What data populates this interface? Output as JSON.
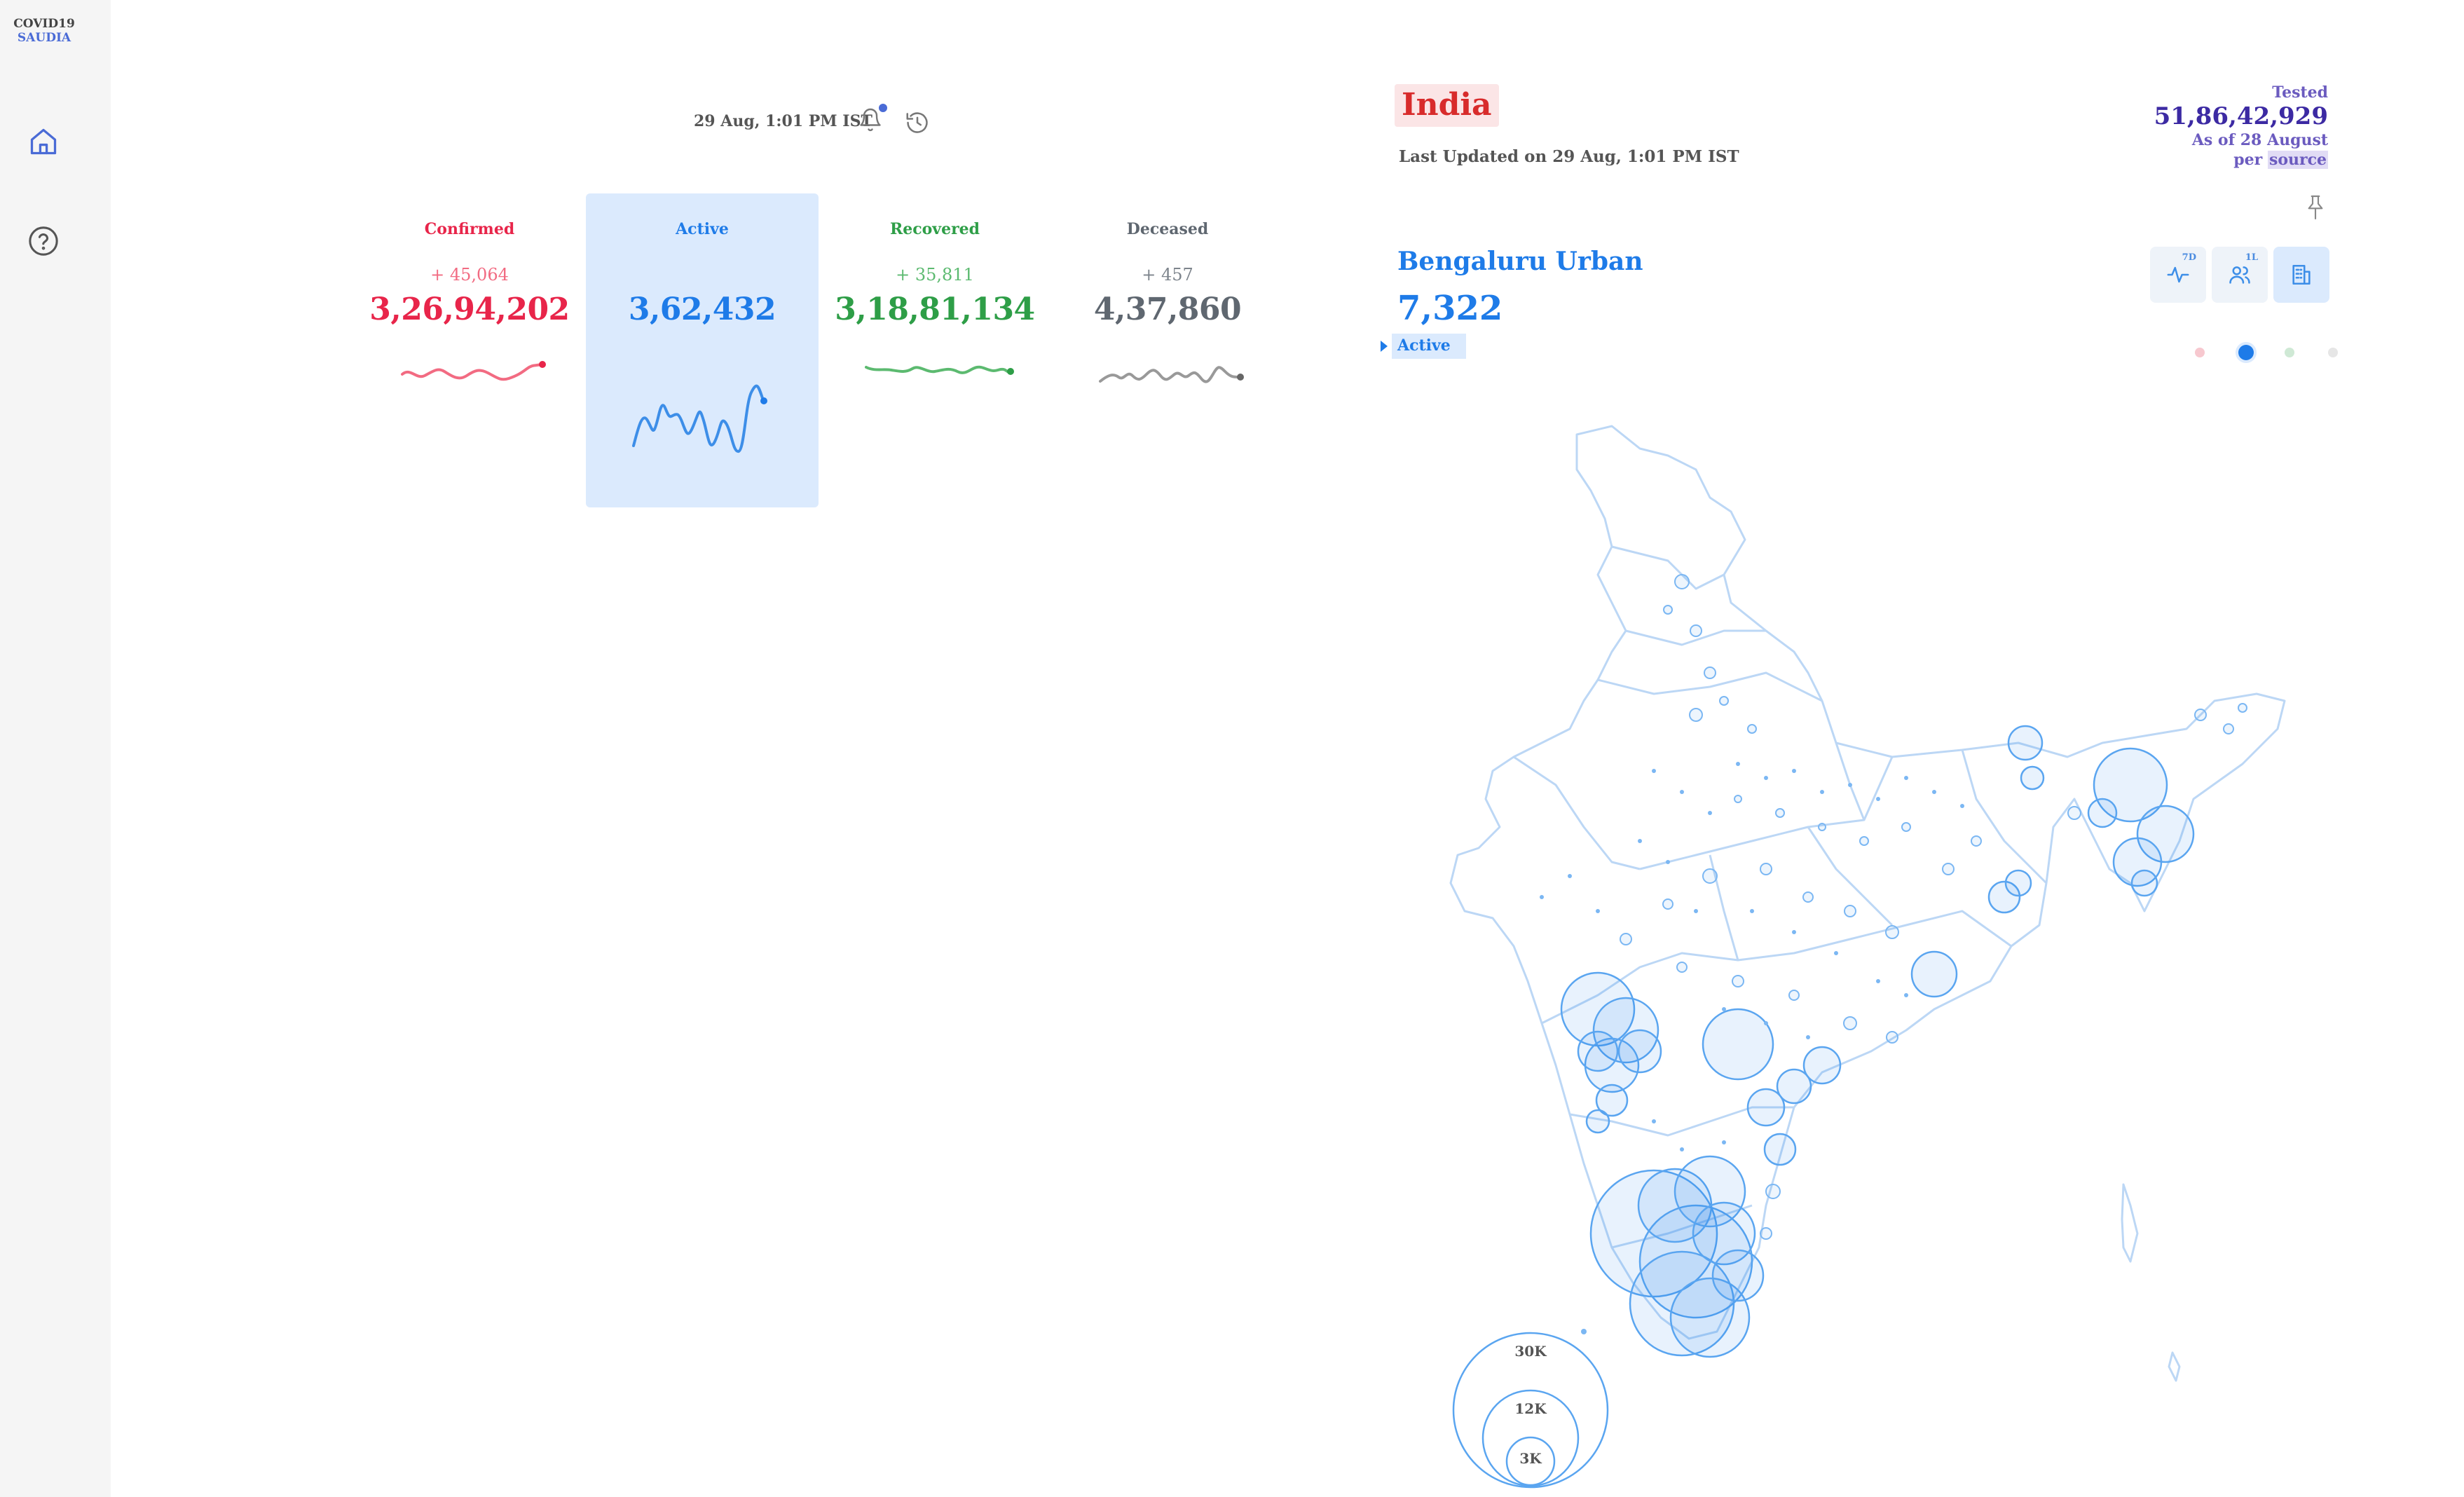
{
  "app": {
    "logo_line1": "COVID19",
    "logo_line2": "SAUDIA"
  },
  "sidebar": {
    "items": [
      {
        "name": "home",
        "icon": "home-icon"
      },
      {
        "name": "help",
        "icon": "help-circle-icon"
      }
    ]
  },
  "header": {
    "timestamp": "29 Aug, 1:01 PM IST",
    "bell_icon": "bell-icon",
    "history_icon": "history-icon"
  },
  "stats": [
    {
      "key": "confirmed",
      "label": "Confirmed",
      "delta": "+ 45,064",
      "total": "3,26,94,202",
      "color": "#e8254a"
    },
    {
      "key": "active",
      "label": "Active",
      "delta": "",
      "total": "3,62,432",
      "color": "#1e7be8"
    },
    {
      "key": "recovered",
      "label": "Recovered",
      "delta": "+ 35,811",
      "total": "3,18,81,134",
      "color": "#2e9e47"
    },
    {
      "key": "deceased",
      "label": "Deceased",
      "delta": "+ 457",
      "total": "4,37,860",
      "color": "#6c757d"
    }
  ],
  "region": {
    "name": "India",
    "last_updated": "Last Updated on 29 Aug, 1:01 PM IST"
  },
  "tested": {
    "label": "Tested",
    "value": "51,86,42,929",
    "as_of": "As of 28 August",
    "per": "per",
    "source": "source"
  },
  "district": {
    "name": "Bengaluru Urban",
    "value": "7,322",
    "statistic": "Active"
  },
  "toggles": [
    {
      "name": "trend",
      "icon": "pulse-icon",
      "sup": "7D"
    },
    {
      "name": "per-capita",
      "icon": "users-icon",
      "sup": "1L"
    },
    {
      "name": "district-view",
      "icon": "building-icon",
      "sup": ""
    }
  ],
  "pin_icon": "pin-icon",
  "map": {
    "legend": [
      "30K",
      "12K",
      "3K"
    ]
  }
}
